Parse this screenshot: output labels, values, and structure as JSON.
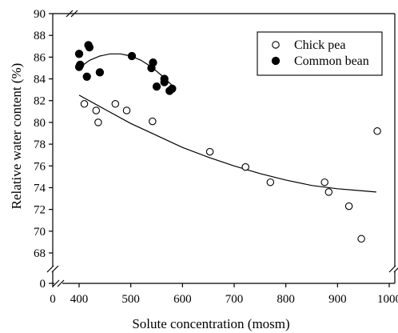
{
  "chart_data": {
    "type": "scatter",
    "xlabel": "Solute concentration (mosm)",
    "ylabel": "Relative water content (%)",
    "xlim": [
      400,
      1000
    ],
    "ylim": [
      67,
      90
    ],
    "axis_breaks": {
      "x_from": 0,
      "y_from": 0
    },
    "x_ticks": [
      400,
      500,
      600,
      700,
      800,
      900,
      1000
    ],
    "x_tick_labels": [
      "400",
      "500",
      "600",
      "700",
      "800",
      "900",
      "1000"
    ],
    "x_break_tick": 0,
    "x_break_tick_label": "0",
    "y_ticks": [
      68,
      70,
      72,
      74,
      76,
      78,
      80,
      82,
      84,
      86,
      88,
      90
    ],
    "y_tick_labels": [
      "68",
      "70",
      "72",
      "74",
      "76",
      "78",
      "80",
      "82",
      "84",
      "86",
      "88",
      "90"
    ],
    "y_break_tick": 0,
    "y_break_tick_label": "0",
    "legend_position": "top-right",
    "series": [
      {
        "name": "Chick pea",
        "marker": "open-circle",
        "color": "#000000",
        "points": [
          [
            410,
            81.7
          ],
          [
            433,
            81.1
          ],
          [
            437,
            80.0
          ],
          [
            470,
            81.7
          ],
          [
            492,
            81.1
          ],
          [
            542,
            80.1
          ],
          [
            653,
            77.3
          ],
          [
            722,
            75.9
          ],
          [
            770,
            74.5
          ],
          [
            875,
            74.5
          ],
          [
            883,
            73.6
          ],
          [
            922,
            72.3
          ],
          [
            946,
            69.3
          ],
          [
            977,
            79.2
          ]
        ],
        "trendline": [
          [
            400,
            82.5
          ],
          [
            450,
            81.2
          ],
          [
            500,
            79.9
          ],
          [
            550,
            78.8
          ],
          [
            600,
            77.7
          ],
          [
            650,
            76.8
          ],
          [
            700,
            76.0
          ],
          [
            750,
            75.3
          ],
          [
            800,
            74.7
          ],
          [
            850,
            74.2
          ],
          [
            900,
            73.9
          ],
          [
            950,
            73.7
          ],
          [
            975,
            73.6
          ]
        ]
      },
      {
        "name": "Common bean",
        "marker": "filled-circle",
        "color": "#000000",
        "points": [
          [
            400,
            86.3
          ],
          [
            400,
            85.1
          ],
          [
            402,
            85.3
          ],
          [
            415,
            84.2
          ],
          [
            418,
            87.1
          ],
          [
            420,
            86.9
          ],
          [
            440,
            84.6
          ],
          [
            502,
            86.1
          ],
          [
            540,
            85.0
          ],
          [
            543,
            85.5
          ],
          [
            550,
            83.3
          ],
          [
            565,
            84.0
          ],
          [
            565,
            83.7
          ],
          [
            575,
            82.9
          ],
          [
            580,
            83.1
          ]
        ],
        "trendline": [
          [
            400,
            85.0
          ],
          [
            420,
            85.7
          ],
          [
            440,
            86.1
          ],
          [
            460,
            86.3
          ],
          [
            480,
            86.3
          ],
          [
            500,
            86.1
          ],
          [
            520,
            85.7
          ],
          [
            540,
            85.1
          ],
          [
            560,
            84.3
          ],
          [
            580,
            83.4
          ]
        ]
      }
    ]
  }
}
